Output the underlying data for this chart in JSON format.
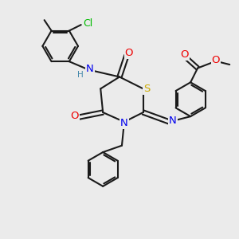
{
  "bg_color": "#ebebeb",
  "bond_color": "#1a1a1a",
  "bond_width": 1.5,
  "atom_colors": {
    "N": "#0000ee",
    "O": "#ee0000",
    "S": "#ccaa00",
    "Cl": "#00bb00",
    "H": "#4488aa",
    "C": "#1a1a1a"
  },
  "font_size": 8.5,
  "fig_size": [
    3.0,
    3.0
  ],
  "dpi": 100
}
